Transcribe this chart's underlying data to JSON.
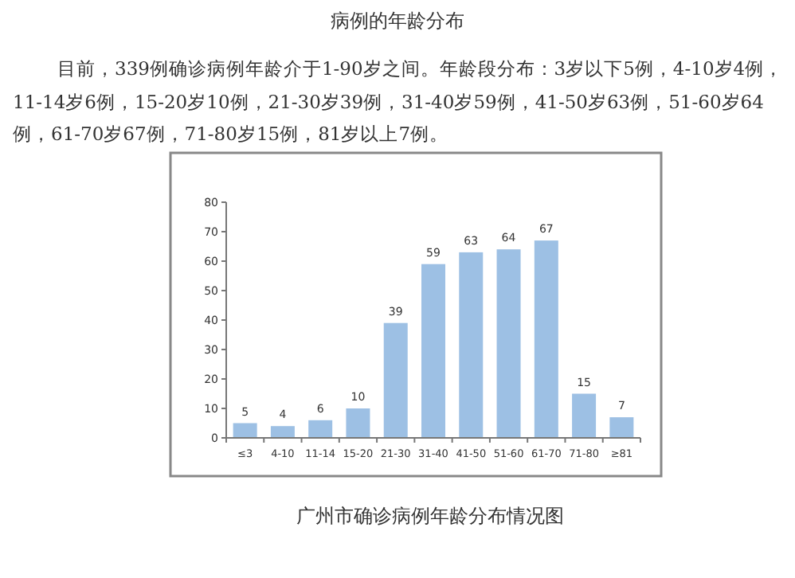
{
  "chart_data": {
    "type": "bar",
    "title": "病例的年龄分布",
    "subtitle": "目前，339例确诊病例年龄介于1-90岁之间。年龄段分布：3岁以下5例，4-10岁4例，11-14岁6例，15-20岁10例，21-30岁39例，31-40岁59例，41-50岁63例，51-60岁64例，61-70岁67例，71-80岁15例，81岁以上7例。",
    "annotations": [
      "广州市确诊病例年龄分布情况图"
    ],
    "categories": [
      "≤3",
      "4-10",
      "11-14",
      "15-20",
      "21-30",
      "31-40",
      "41-50",
      "51-60",
      "61-70",
      "71-80",
      "≥81"
    ],
    "values": [
      5,
      4,
      6,
      10,
      39,
      59,
      63,
      64,
      67,
      15,
      7
    ],
    "color": "#9dc0e4",
    "ylim": [
      0,
      80
    ],
    "yticks": [
      0,
      10,
      20,
      30,
      40,
      50,
      60,
      70,
      80
    ],
    "data_labels": true
  }
}
